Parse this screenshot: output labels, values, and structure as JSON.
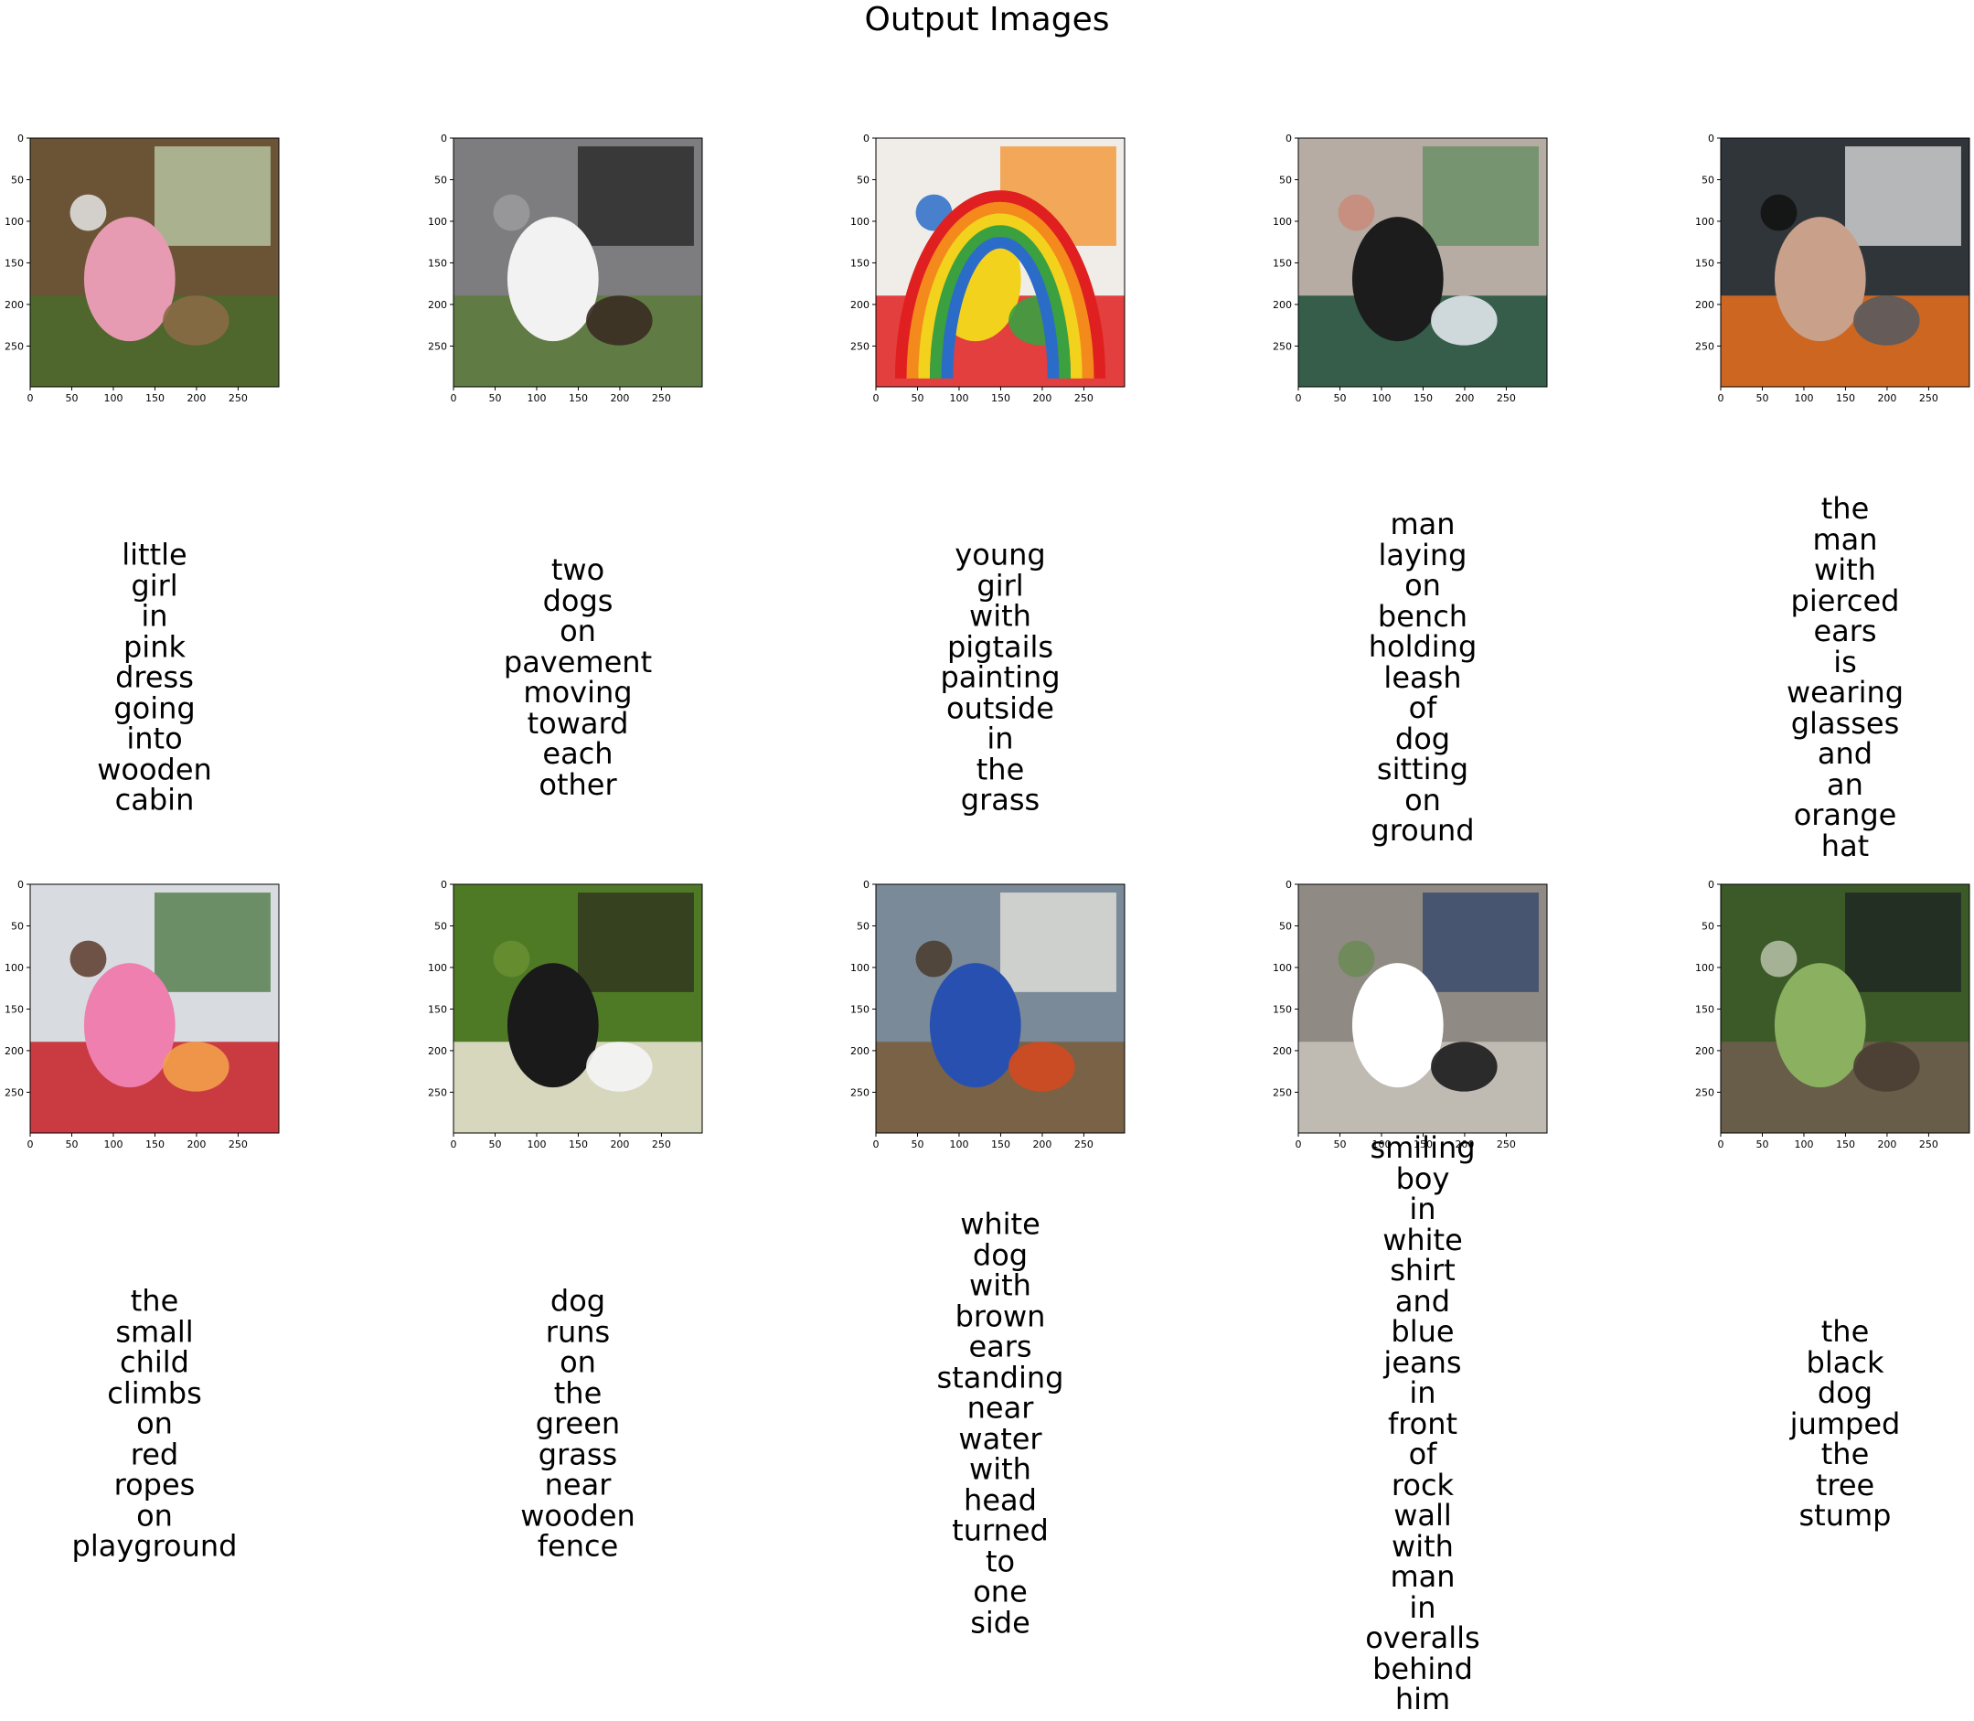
{
  "title": "Output Images",
  "chart_data": {
    "type": "image-grid",
    "title": "Output Images",
    "axis_ticks": [
      0,
      50,
      100,
      150,
      200,
      250
    ],
    "axis_range": [
      0,
      299
    ],
    "panels": [
      {
        "scene": "girl-cabin",
        "caption": "little girl in pink dress going into wooden cabin",
        "colors": [
          "#6b5436",
          "#4a6a2a",
          "#c5d9b5",
          "#e79bb2",
          "#8a6a45",
          "#e5e5e5"
        ]
      },
      {
        "scene": "two-dogs-pavement",
        "caption": "two dogs on pavement moving toward each other",
        "colors": [
          "#7d7d7f",
          "#5b7a3a",
          "#1c1c1c",
          "#f2f2f2",
          "#3a2c24",
          "#9b9b9d"
        ]
      },
      {
        "scene": "rainbow-painting",
        "caption": "young girl with pigtails painting outside in the grass",
        "colors": [
          "#f0ede8",
          "#e02020",
          "#f48a1c",
          "#f2d21c",
          "#3aa040",
          "#2b6cc8"
        ]
      },
      {
        "scene": "man-bench-dog",
        "caption": "man laying on bench holding leash of dog sitting on ground",
        "colors": [
          "#b7aca3",
          "#1f4f3b",
          "#5a8a5a",
          "#1c1c1c",
          "#e0e6ea",
          "#c98a7a"
        ]
      },
      {
        "scene": "man-orange-hat",
        "caption": "the man with pierced ears is wearing glasses and an orange hat",
        "colors": [
          "#30353a",
          "#e86e1c",
          "#f0f0f0",
          "#c9a08a",
          "#5a5a5e",
          "#111111"
        ]
      },
      {
        "scene": "child-ropes",
        "caption": "the small child climbs on red ropes on playground",
        "colors": [
          "#d8dbe0",
          "#c81e24",
          "#3f6e33",
          "#ee7fae",
          "#f3a04a",
          "#5c3a2a"
        ]
      },
      {
        "scene": "dog-grass-fence",
        "caption": "dog runs on the green grass near wooden fence",
        "colors": [
          "#4f7a25",
          "#efe8d8",
          "#2c2a1e",
          "#1a1a1a",
          "#f5f5f5",
          "#6a8f33"
        ]
      },
      {
        "scene": "white-dog-water",
        "caption": "white dog with brown ears standing near water with head turned to one side",
        "colors": [
          "#7a8a98",
          "#7a5a38",
          "#f2eee6",
          "#2850b0",
          "#d24a20",
          "#4a3a2a"
        ]
      },
      {
        "scene": "boy-rock-wall",
        "caption": "smiling boy in white shirt and blue jeans in front of rock wall with man in overalls behind him",
        "colors": [
          "#8f8a84",
          "#c8c2ba",
          "#2a3f6a",
          "#ffffff",
          "#1c1c1c",
          "#6b8a55"
        ]
      },
      {
        "scene": "black-dog-stump",
        "caption": "the black dog jumped the tree stump",
        "colors": [
          "#3c5a28",
          "#6e5e4e",
          "#1a1c22",
          "#8ab060",
          "#4a3e33",
          "#b8c2a8"
        ]
      }
    ]
  }
}
